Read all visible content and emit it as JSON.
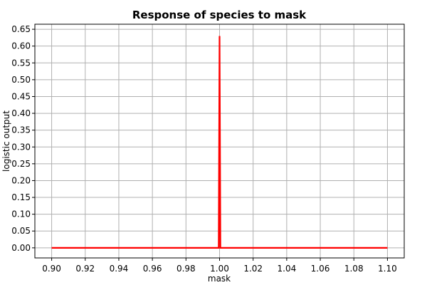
{
  "chart_data": {
    "type": "line",
    "title": "Response of species to mask",
    "xlabel": "mask",
    "ylabel": "logistic output",
    "xlim": [
      0.89,
      1.11
    ],
    "ylim": [
      -0.03,
      0.665
    ],
    "x_ticks": [
      "0.90",
      "0.92",
      "0.94",
      "0.96",
      "0.98",
      "1.00",
      "1.02",
      "1.04",
      "1.06",
      "1.08",
      "1.10"
    ],
    "y_ticks": [
      "0.00",
      "0.05",
      "0.10",
      "0.15",
      "0.20",
      "0.25",
      "0.30",
      "0.35",
      "0.40",
      "0.45",
      "0.50",
      "0.55",
      "0.60",
      "0.65"
    ],
    "grid": true,
    "series": [
      {
        "color": "#ff0000",
        "x": [
          0.9,
          0.9995,
          1.0,
          1.0005,
          1.1
        ],
        "y": [
          0.0,
          0.0,
          0.63,
          0.0,
          0.0
        ]
      }
    ]
  }
}
